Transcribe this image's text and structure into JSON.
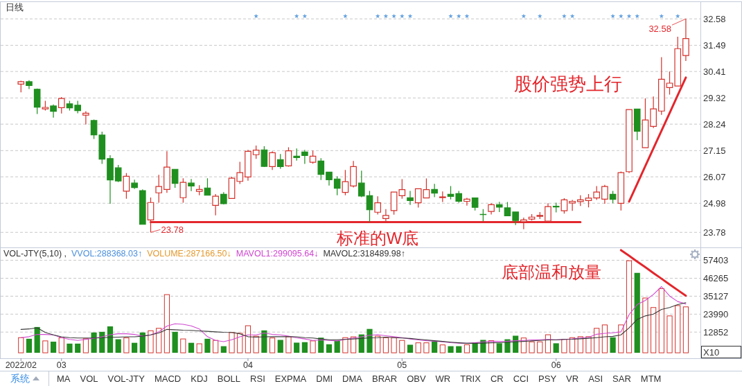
{
  "chart_data": [
    {
      "type": "candlestick",
      "title": "日线",
      "categories": [
        "2022/02",
        null,
        null,
        null,
        null,
        "03",
        null,
        null,
        null,
        null,
        null,
        null,
        null,
        null,
        null,
        null,
        null,
        null,
        null,
        null,
        null,
        null,
        null,
        null,
        null,
        null,
        null,
        null,
        "04",
        null,
        null,
        null,
        null,
        null,
        null,
        null,
        null,
        null,
        null,
        null,
        null,
        null,
        null,
        null,
        null,
        null,
        null,
        "05",
        null,
        null,
        null,
        null,
        null,
        null,
        null,
        null,
        null,
        null,
        null,
        null,
        null,
        null,
        null,
        null,
        null,
        null,
        "06",
        null,
        null,
        null,
        null,
        null,
        null,
        null,
        null,
        null,
        null,
        null,
        null,
        null,
        null,
        null,
        null
      ],
      "ohlc": [
        [
          29.89,
          30.03,
          29.55,
          29.99
        ],
        [
          29.99,
          30.05,
          29.69,
          29.83
        ],
        [
          29.68,
          29.71,
          28.66,
          28.94
        ],
        [
          28.87,
          29.2,
          28.8,
          28.93
        ],
        [
          28.99,
          29.05,
          28.51,
          28.77
        ],
        [
          28.92,
          29.36,
          28.68,
          29.3
        ],
        [
          29.08,
          29.2,
          28.8,
          28.91
        ],
        [
          29.02,
          29.2,
          28.69,
          28.8
        ],
        [
          28.61,
          28.77,
          28.23,
          28.69
        ],
        [
          28.39,
          28.43,
          27.63,
          27.8
        ],
        [
          27.79,
          27.93,
          26.6,
          26.8
        ],
        [
          26.82,
          26.96,
          24.96,
          25.94
        ],
        [
          26.44,
          26.56,
          25.85,
          25.9
        ],
        [
          25.48,
          26.22,
          25.17,
          26.09
        ],
        [
          25.81,
          25.95,
          25.57,
          25.63
        ],
        [
          25.5,
          25.55,
          24.11,
          24.11
        ],
        [
          24.29,
          25.22,
          23.78,
          25.01
        ],
        [
          25.41,
          26.15,
          25.0,
          25.67
        ],
        [
          25.55,
          27.12,
          25.41,
          26.47
        ],
        [
          26.38,
          26.38,
          25.62,
          25.8
        ],
        [
          25.21,
          26.01,
          25.0,
          25.84
        ],
        [
          25.81,
          25.98,
          25.48,
          25.69
        ],
        [
          25.47,
          25.72,
          25.31,
          25.55
        ],
        [
          25.61,
          26.01,
          25.31,
          25.31
        ],
        [
          24.89,
          25.36,
          24.48,
          25.27
        ],
        [
          25.35,
          25.44,
          24.93,
          24.96
        ],
        [
          25.18,
          26.07,
          25.18,
          26.01
        ],
        [
          25.88,
          26.69,
          25.77,
          26.24
        ],
        [
          26.06,
          27.18,
          25.91,
          27.12
        ],
        [
          26.98,
          27.36,
          26.81,
          27.17
        ],
        [
          27.18,
          27.33,
          26.47,
          26.5
        ],
        [
          26.49,
          27.12,
          26.35,
          27.06
        ],
        [
          26.78,
          27.01,
          26.4,
          26.49
        ],
        [
          26.52,
          27.29,
          26.49,
          27.14
        ],
        [
          26.92,
          27.24,
          26.74,
          26.86
        ],
        [
          27.09,
          27.18,
          26.6,
          26.95
        ],
        [
          26.67,
          27.15,
          26.61,
          26.92
        ],
        [
          26.72,
          26.84,
          25.94,
          26.17
        ],
        [
          26.26,
          26.28,
          25.71,
          25.95
        ],
        [
          25.98,
          26.09,
          25.31,
          25.6
        ],
        [
          25.43,
          26.35,
          25.31,
          25.87
        ],
        [
          25.69,
          26.72,
          25.63,
          26.49
        ],
        [
          25.81,
          26.32,
          25.23,
          25.28
        ],
        [
          25.29,
          25.49,
          24.21,
          24.71
        ],
        [
          24.61,
          25.27,
          24.52,
          25.0
        ],
        [
          24.35,
          24.74,
          24.21,
          24.48
        ],
        [
          24.68,
          25.44,
          24.51,
          25.44
        ],
        [
          25.29,
          25.97,
          25.17,
          25.54
        ],
        [
          25.21,
          25.49,
          24.91,
          25.09
        ],
        [
          25.0,
          25.58,
          24.8,
          25.58
        ],
        [
          25.2,
          26.0,
          25.2,
          25.54
        ],
        [
          25.55,
          25.78,
          25.23,
          25.4
        ],
        [
          25.21,
          25.47,
          25.03,
          25.24
        ],
        [
          25.35,
          25.69,
          25.14,
          25.26
        ],
        [
          25.38,
          25.49,
          25.0,
          25.06
        ],
        [
          25.06,
          25.2,
          24.88,
          25.15
        ],
        [
          25.2,
          25.22,
          24.68,
          24.81
        ],
        [
          24.52,
          24.74,
          24.24,
          24.51
        ],
        [
          24.64,
          24.98,
          24.52,
          24.92
        ],
        [
          24.92,
          25.04,
          24.62,
          24.82
        ],
        [
          24.79,
          25.03,
          24.46,
          24.46
        ],
        [
          24.62,
          24.62,
          24.08,
          24.27
        ],
        [
          24.22,
          24.39,
          23.91,
          24.29
        ],
        [
          24.33,
          24.53,
          24.27,
          24.41
        ],
        [
          24.44,
          24.62,
          24.33,
          24.48
        ],
        [
          24.24,
          24.98,
          24.24,
          24.84
        ],
        [
          24.86,
          25.0,
          24.6,
          24.83
        ],
        [
          24.67,
          25.19,
          24.55,
          25.12
        ],
        [
          24.99,
          25.12,
          24.67,
          25.06
        ],
        [
          25.05,
          25.31,
          24.87,
          25.12
        ],
        [
          25.09,
          25.36,
          24.81,
          25.19
        ],
        [
          25.2,
          25.69,
          25.12,
          25.44
        ],
        [
          25.15,
          25.74,
          24.96,
          25.67
        ],
        [
          25.35,
          25.49,
          24.98,
          25.14
        ],
        [
          24.98,
          26.29,
          24.68,
          26.24
        ],
        [
          26.28,
          28.84,
          26.22,
          28.84
        ],
        [
          28.86,
          28.88,
          27.58,
          27.95
        ],
        [
          27.27,
          29.3,
          27.27,
          28.41
        ],
        [
          28.15,
          29.38,
          28.08,
          28.87
        ],
        [
          28.78,
          31.0,
          28.62,
          30.09
        ],
        [
          29.75,
          30.41,
          29.46,
          29.93
        ],
        [
          29.81,
          31.84,
          29.81,
          31.35
        ],
        [
          31.07,
          32.58,
          30.84,
          31.77
        ]
      ],
      "ylim": [
        23.16,
        33.3
      ],
      "yticks": [
        23.78,
        24.98,
        26.07,
        27.15,
        28.24,
        29.32,
        30.41,
        31.49,
        32.58
      ],
      "grid": "y",
      "tick_labels": "y",
      "series": [
        {
          "type": "line",
          "color": "#e3262c",
          "values": [
            null,
            null,
            null,
            null,
            null,
            null,
            null,
            null,
            null,
            null,
            null,
            null,
            null,
            null,
            null,
            null,
            24.2,
            24.2,
            24.2,
            24.2,
            24.2,
            24.2,
            24.2,
            24.2,
            24.2,
            24.2,
            24.2,
            24.2,
            24.2,
            24.2,
            24.2,
            24.2,
            24.2,
            24.2,
            24.2,
            24.2,
            24.2,
            24.2,
            24.2,
            24.2,
            24.2,
            24.2,
            24.2,
            24.2,
            24.2,
            24.2,
            24.2,
            24.2,
            24.2,
            24.2,
            24.2,
            24.2,
            24.2,
            24.2,
            24.2,
            24.2,
            24.2,
            24.2,
            24.2,
            24.2,
            24.2,
            24.2,
            24.2,
            24.2,
            24.2,
            24.2,
            24.2,
            24.2,
            24.2,
            24.2,
            null,
            null,
            null,
            null,
            null,
            null,
            null,
            null,
            null,
            null,
            null,
            null,
            null
          ]
        },
        {
          "type": "line",
          "color": "#e3262c",
          "values": [
            null,
            null,
            null,
            null,
            null,
            null,
            null,
            null,
            null,
            null,
            null,
            null,
            null,
            null,
            null,
            null,
            null,
            null,
            null,
            null,
            null,
            null,
            null,
            null,
            null,
            null,
            null,
            null,
            null,
            null,
            null,
            null,
            null,
            null,
            null,
            null,
            null,
            null,
            null,
            null,
            null,
            null,
            null,
            null,
            null,
            null,
            null,
            null,
            null,
            null,
            null,
            null,
            null,
            null,
            null,
            null,
            null,
            null,
            null,
            null,
            null,
            null,
            null,
            null,
            null,
            null,
            null,
            null,
            null,
            null,
            null,
            null,
            null,
            null,
            null,
            25.05,
            25.78,
            26.51,
            27.24,
            27.97,
            28.7,
            29.43,
            30.16
          ]
        },
        {
          "type": "scatter",
          "color": "#6aa5e0",
          "marker": "star",
          "values": [
            null,
            null,
            null,
            null,
            null,
            null,
            null,
            null,
            null,
            null,
            null,
            null,
            null,
            null,
            null,
            null,
            null,
            null,
            null,
            null,
            null,
            null,
            null,
            null,
            null,
            null,
            null,
            null,
            null,
            32.69,
            null,
            null,
            null,
            null,
            32.69,
            32.69,
            null,
            null,
            null,
            null,
            32.69,
            null,
            null,
            null,
            32.69,
            32.69,
            32.69,
            32.69,
            32.69,
            null,
            null,
            null,
            null,
            32.69,
            32.69,
            32.69,
            null,
            null,
            null,
            null,
            null,
            null,
            32.69,
            null,
            32.69,
            null,
            null,
            32.69,
            32.69,
            null,
            null,
            null,
            null,
            32.69,
            32.69,
            32.69,
            32.69,
            null,
            null,
            32.69,
            null,
            32.69,
            null
          ]
        }
      ],
      "annotations": [
        "股价强势上行",
        "标准的W底",
        "23.78",
        {
          "text": "32.58",
          "y": 32.58
        }
      ]
    },
    {
      "type": "bar",
      "title": "VOL-JTY(5,10) ,",
      "categories": [
        "2022/02",
        null,
        null,
        null,
        null,
        "03",
        null,
        null,
        null,
        null,
        null,
        null,
        null,
        null,
        null,
        null,
        null,
        null,
        null,
        null,
        null,
        null,
        null,
        null,
        null,
        null,
        null,
        null,
        "04",
        null,
        null,
        null,
        null,
        null,
        null,
        null,
        null,
        null,
        null,
        null,
        null,
        null,
        null,
        null,
        null,
        null,
        null,
        "05",
        null,
        null,
        null,
        null,
        null,
        null,
        null,
        null,
        null,
        null,
        null,
        null,
        null,
        null,
        null,
        null,
        null,
        null,
        "06",
        null,
        null,
        null,
        null,
        null,
        null,
        null,
        null,
        null,
        null,
        null,
        null,
        null,
        null,
        null,
        null
      ],
      "ylim": [
        -3400,
        65400
      ],
      "yticks": [
        12852,
        23990,
        35127,
        46265,
        57403
      ],
      "ylabel": "X10",
      "grid": "y",
      "annotations": [
        "VVOL:288368.03↑",
        "VOLUME:287166.50↓",
        "MAVOL1:299095.64↓",
        "MAVOL2:318489.98↑",
        "底部温和放量"
      ],
      "series": [
        {
          "type": "bar",
          "values": [
            9400,
            8700,
            16000,
            7400,
            6900,
            9300,
            5700,
            5700,
            8700,
            12600,
            13000,
            16400,
            8400,
            9300,
            6200,
            12600,
            13700,
            15200,
            36100,
            13000,
            8600,
            6200,
            5600,
            8700,
            7700,
            4100,
            12600,
            12100,
            16800,
            10300,
            13900,
            9200,
            8000,
            10000,
            6300,
            6600,
            7400,
            9400,
            5300,
            7400,
            9400,
            9900,
            11400,
            14800,
            10300,
            9400,
            9400,
            7700,
            5000,
            6200,
            6200,
            7200,
            4900,
            4100,
            4100,
            5000,
            6300,
            8000,
            7500,
            5900,
            8400,
            10600,
            9200,
            6800,
            6800,
            11200,
            5900,
            8400,
            9400,
            10000,
            10000,
            15200,
            17300,
            9600,
            17300,
            57100,
            49600,
            34000,
            28100,
            39800,
            22900,
            29300,
            28500
          ],
          "colors": [
            "#d3312b",
            "#1f8f1f",
            "#1f8f1f",
            "#d3312b",
            "#1f8f1f",
            "#d3312b",
            "#1f8f1f",
            "#1f8f1f",
            "#d3312b",
            "#1f8f1f",
            "#1f8f1f",
            "#1f8f1f",
            "#1f8f1f",
            "#d3312b",
            "#1f8f1f",
            "#1f8f1f",
            "#d3312b",
            "#d3312b",
            "#d3312b",
            "#1f8f1f",
            "#d3312b",
            "#1f8f1f",
            "#d3312b",
            "#1f8f1f",
            "#d3312b",
            "#1f8f1f",
            "#d3312b",
            "#d3312b",
            "#d3312b",
            "#d3312b",
            "#1f8f1f",
            "#d3312b",
            "#1f8f1f",
            "#d3312b",
            "#1f8f1f",
            "#1f8f1f",
            "#d3312b",
            "#1f8f1f",
            "#1f8f1f",
            "#1f8f1f",
            "#d3312b",
            "#d3312b",
            "#1f8f1f",
            "#1f8f1f",
            "#d3312b",
            "#d3312b",
            "#d3312b",
            "#d3312b",
            "#1f8f1f",
            "#d3312b",
            "#d3312b",
            "#1f8f1f",
            "#d3312b",
            "#1f8f1f",
            "#1f8f1f",
            "#d3312b",
            "#1f8f1f",
            "#1f8f1f",
            "#d3312b",
            "#1f8f1f",
            "#1f8f1f",
            "#1f8f1f",
            "#d3312b",
            "#d3312b",
            "#d3312b",
            "#d3312b",
            "#1f8f1f",
            "#d3312b",
            "#d3312b",
            "#d3312b",
            "#d3312b",
            "#d3312b",
            "#d3312b",
            "#1f8f1f",
            "#d3312b",
            "#d3312b",
            "#1f8f1f",
            "#d3312b",
            "#d3312b",
            "#d3312b",
            "#d3312b",
            "#d3312b",
            "#d3312b"
          ]
        },
        {
          "type": "line",
          "color": "#d04ad0",
          "values": [
            9400,
            10000,
            11400,
            11400,
            11100,
            9400,
            8300,
            7700,
            8300,
            9000,
            9900,
            11200,
            11800,
            11800,
            11400,
            10300,
            11100,
            13000,
            16600,
            18000,
            17700,
            16700,
            14800,
            10000,
            7700,
            6900,
            8100,
            9900,
            11100,
            11100,
            12300,
            11400,
            11100,
            10300,
            9300,
            8600,
            7700,
            8000,
            7700,
            7400,
            8300,
            9200,
            9900,
            10900,
            11200,
            10600,
            10000,
            9400,
            8600,
            8000,
            7500,
            7200,
            6800,
            6300,
            6000,
            5900,
            6200,
            6800,
            7200,
            7100,
            7200,
            7500,
            7700,
            8000,
            8100,
            8300,
            8100,
            8300,
            8600,
            9200,
            9600,
            11500,
            12100,
            12400,
            13000,
            23700,
            29900,
            32500,
            36200,
            41100,
            35200,
            31800,
            30300
          ]
        },
        {
          "type": "line",
          "color": "#3a3a3a",
          "values": [
            14500,
            14800,
            15500,
            12600,
            11100,
            9900,
            9400,
            9200,
            9200,
            9200,
            9300,
            9600,
            9700,
            9900,
            9900,
            10300,
            11100,
            12300,
            14500,
            14300,
            14000,
            13900,
            13600,
            13300,
            13000,
            12700,
            12600,
            11800,
            10000,
            9700,
            9900,
            10000,
            10000,
            10000,
            9900,
            9400,
            9200,
            8600,
            8100,
            8100,
            8300,
            8600,
            8900,
            9300,
            9400,
            9700,
            9400,
            9200,
            8900,
            8400,
            8000,
            7500,
            7100,
            6600,
            6200,
            5900,
            5900,
            6000,
            6200,
            6300,
            6500,
            6800,
            7100,
            7400,
            7700,
            8000,
            8000,
            8300,
            8400,
            8700,
            9000,
            9400,
            9900,
            10200,
            11100,
            15500,
            20700,
            22900,
            24000,
            26900,
            28100,
            29900,
            31100
          ]
        },
        {
          "type": "line",
          "color": "#e3262c",
          "values": [
            null,
            null,
            null,
            null,
            null,
            null,
            null,
            null,
            null,
            null,
            null,
            null,
            null,
            null,
            null,
            null,
            null,
            null,
            null,
            null,
            null,
            null,
            null,
            null,
            null,
            null,
            null,
            null,
            null,
            null,
            null,
            null,
            null,
            null,
            null,
            null,
            null,
            null,
            null,
            null,
            null,
            null,
            null,
            null,
            null,
            null,
            null,
            null,
            null,
            null,
            null,
            null,
            null,
            null,
            null,
            null,
            null,
            null,
            null,
            null,
            null,
            null,
            null,
            null,
            null,
            null,
            null,
            null,
            null,
            null,
            null,
            null,
            null,
            null,
            63700,
            60200,
            56600,
            53100,
            49500,
            46000,
            42400,
            38900,
            35400
          ]
        }
      ]
    },
    {
      "type": "other",
      "annotations": [
        "系统",
        "MA",
        "VOL",
        "VOL-JTY",
        "MACD",
        "KDJ",
        "BOLL",
        "RSI",
        "EXPMA",
        "DMI",
        "DMA",
        "BRAR",
        "OBV",
        "WR",
        "TRIX",
        "CR",
        "CCI",
        "PSY",
        "VR",
        "ASI",
        "SAR",
        "MTM"
      ]
    }
  ]
}
